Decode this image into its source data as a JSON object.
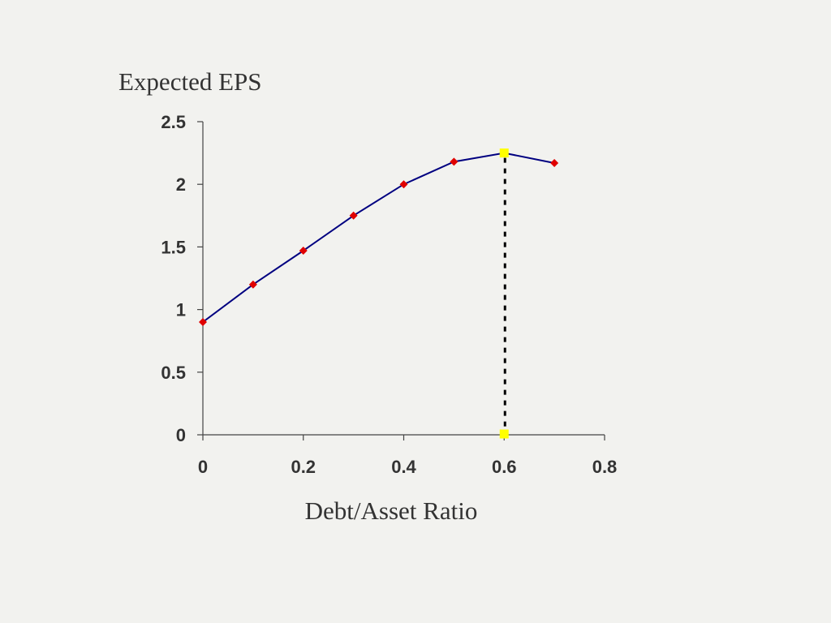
{
  "chart_data": {
    "type": "line",
    "title": "",
    "ylabel": "Expected EPS",
    "xlabel": "Debt/Asset Ratio",
    "xlim": [
      0,
      0.8
    ],
    "ylim": [
      0,
      2.5
    ],
    "x_ticks": [
      "0",
      "0.2",
      "0.4",
      "0.6",
      "0.8"
    ],
    "y_ticks": [
      "0",
      "0.5",
      "1",
      "1.5",
      "2",
      "2.5"
    ],
    "grid": false,
    "series": [
      {
        "x": [
          0,
          0.1,
          0.2,
          0.3,
          0.4,
          0.5,
          0.6,
          0.7
        ],
        "y": [
          0.9,
          1.2,
          1.47,
          1.75,
          2.0,
          2.18,
          2.25,
          2.17
        ],
        "line_color": "#000080",
        "marker_color": "#e00000",
        "marker": "diamond"
      }
    ],
    "highlight": {
      "x": 0.6,
      "y": 2.25,
      "marker_color": "#ffff00",
      "marker": "square",
      "dropline": "dotted"
    }
  }
}
